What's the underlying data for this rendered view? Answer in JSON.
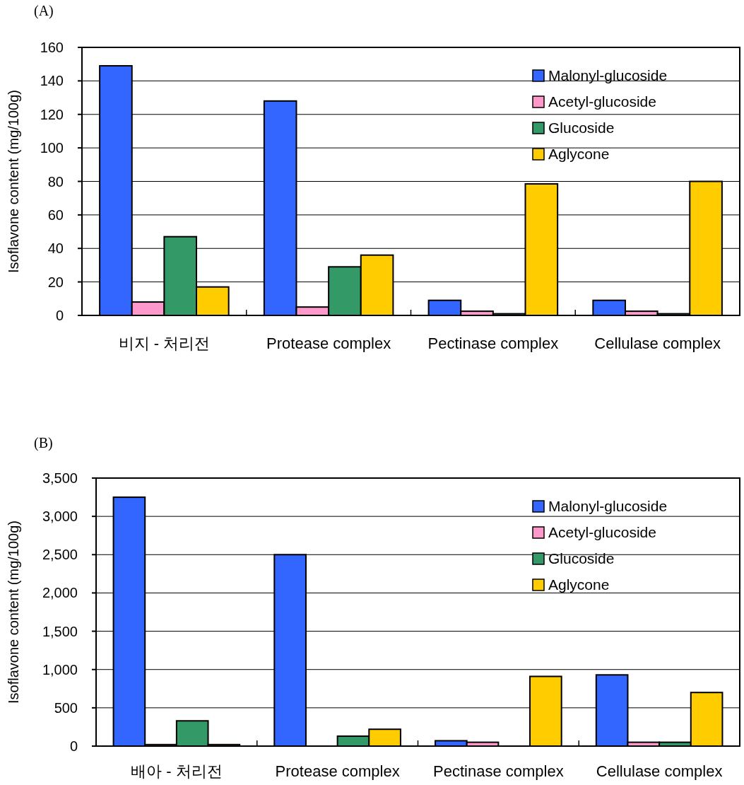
{
  "chart_data": [
    {
      "type": "bar",
      "title": "(A)",
      "ylabel": "Isoflavone content (mg/100g)",
      "categories": [
        "비지 - 처리전",
        "Protease complex",
        "Pectinase complex",
        "Cellulase complex"
      ],
      "series": [
        {
          "name": "Malonyl-glucoside",
          "color": "#3366ff",
          "values": [
            149,
            128,
            9,
            9
          ]
        },
        {
          "name": "Acetyl-glucoside",
          "color": "#ff99cc",
          "values": [
            8,
            5,
            2.5,
            2.5
          ]
        },
        {
          "name": "Glucoside",
          "color": "#339966",
          "values": [
            47,
            29,
            1,
            1
          ]
        },
        {
          "name": "Aglycone",
          "color": "#ffcc00",
          "values": [
            17,
            36,
            78.5,
            80
          ]
        }
      ],
      "ylim": [
        0,
        160
      ],
      "yticks": [
        0,
        20,
        40,
        60,
        80,
        100,
        120,
        140,
        160
      ],
      "grid": "y",
      "legend": "top right"
    },
    {
      "type": "bar",
      "title": "(B)",
      "ylabel": "Isoflavone content (mg/100g)",
      "categories": [
        "배아 - 처리전",
        "Protease complex",
        "Pectinase complex",
        "Cellulase complex"
      ],
      "series": [
        {
          "name": "Malonyl-glucoside",
          "color": "#3366ff",
          "values": [
            3250,
            2500,
            70,
            930
          ]
        },
        {
          "name": "Acetyl-glucoside",
          "color": "#ff99cc",
          "values": [
            20,
            0,
            50,
            50
          ]
        },
        {
          "name": "Glucoside",
          "color": "#339966",
          "values": [
            330,
            130,
            0,
            50
          ]
        },
        {
          "name": "Aglycone",
          "color": "#ffcc00",
          "values": [
            20,
            220,
            910,
            700
          ]
        }
      ],
      "ylim": [
        0,
        3500
      ],
      "yticks": [
        0,
        {
          "value": 500,
          "label": "500"
        },
        {
          "value": 1000,
          "label": "1,000"
        },
        {
          "value": 1500,
          "label": "1,500"
        },
        {
          "value": 2000,
          "label": "2,000"
        },
        {
          "value": 2500,
          "label": "2,500"
        },
        {
          "value": 3000,
          "label": "3,000"
        },
        {
          "value": 3500,
          "label": "3,500"
        }
      ],
      "grid": "y",
      "legend": "top right"
    }
  ]
}
